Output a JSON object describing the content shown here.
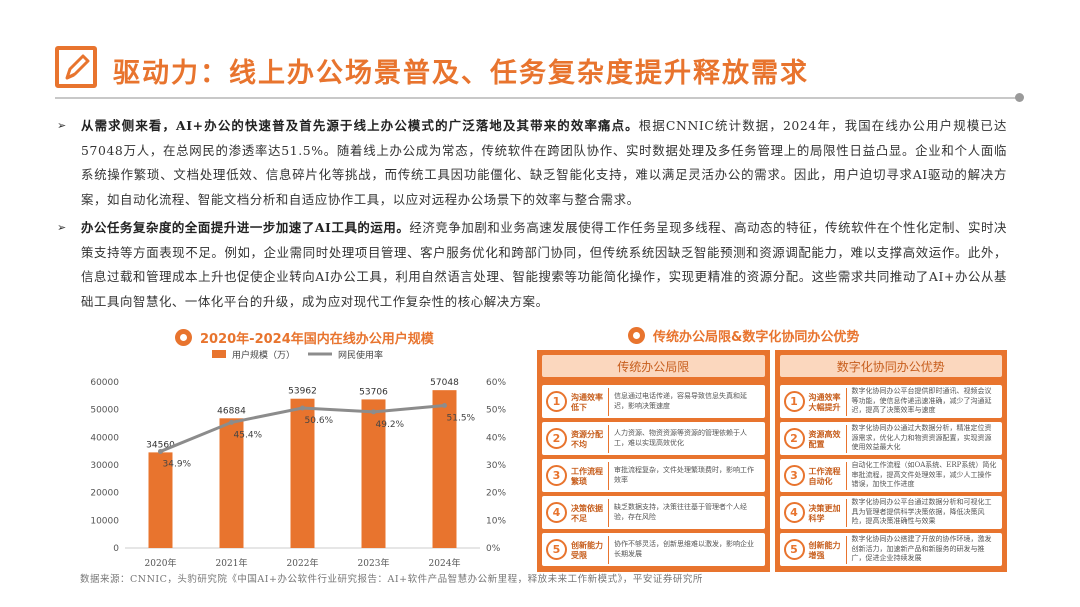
{
  "page": {
    "title": "驱动力：线上办公场景普及、任务复杂度提升释放需求"
  },
  "paragraphs": [
    {
      "bold": "从需求侧来看，AI+办公的快速普及首先源于线上办公模式的广泛落地及其带来的效率痛点。",
      "text": "根据CNNIC统计数据，2024年，我国在线办公用户规模已达57048万人，在总网民的渗透率达51.5%。随着线上办公成为常态，传统软件在跨团队协作、实时数据处理及多任务管理上的局限性日益凸显。企业和个人面临系统操作繁琐、文档处理低效、信息碎片化等挑战，而传统工具因功能僵化、缺乏智能化支持，难以满足灵活办公的需求。因此，用户迫切寻求AI驱动的解决方案，如自动化流程、智能文档分析和自适应协作工具，以应对远程办公场景下的效率与整合需求。"
    },
    {
      "bold": "办公任务复杂度的全面提升进一步加速了AI工具的运用。",
      "text": "经济竞争加剧和业务高速发展使得工作任务呈现多线程、高动态的特征，传统软件在个性化定制、实时决策支持等方面表现不足。例如，企业需同时处理项目管理、客户服务优化和跨部门协同，但传统系统因缺乏智能预测和资源调配能力，难以支撑高效运作。此外，信息过载和管理成本上升也促使企业转向AI办公工具，利用自然语言处理、智能搜索等功能简化操作，实现更精准的资源分配。这些需求共同推动了AI+办公从基础工具向智慧化、一体化平台的升级，成为应对现代工作复杂性的核心解决方案。"
    }
  ],
  "chart_section_title": "2020年-2024年国内在线办公用户规模",
  "table_section_title": "传统办公局限&数字化协同办公优势",
  "chart_data": {
    "type": "bar",
    "categories": [
      "2020年",
      "2021年",
      "2022年",
      "2023年",
      "2024年"
    ],
    "series": [
      {
        "name": "用户规模（万）",
        "type": "bar",
        "axis": "left",
        "values": [
          34560,
          46884,
          53962,
          53706,
          57048
        ],
        "labels": [
          "34560",
          "46884",
          "53962",
          "53706",
          "57048"
        ],
        "color": "#e8742e"
      },
      {
        "name": "网民使用率",
        "type": "line",
        "axis": "right",
        "values": [
          34.9,
          45.4,
          50.6,
          49.2,
          51.5
        ],
        "labels": [
          "34.9%",
          "45.4%",
          "50.6%",
          "49.2%",
          "51.5%"
        ],
        "color": "#8c8c8c"
      }
    ],
    "ylim_left": [
      0,
      60000
    ],
    "yticks_left": [
      "0",
      "10000",
      "20000",
      "30000",
      "40000",
      "50000",
      "60000"
    ],
    "ylim_right": [
      0,
      60
    ],
    "yticks_right": [
      "0%",
      "10%",
      "20%",
      "30%",
      "40%",
      "50%",
      "60%"
    ],
    "legend_position": "top"
  },
  "comparison": {
    "left_header": "传统办公局限",
    "right_header": "数字化协同办公优势",
    "rows": [
      {
        "num": "1",
        "left_label": "沟通效率低下",
        "left_text": "信息通过电话传递，容易导致信息失真和延迟，影响决策速度",
        "right_label": "沟通效率大幅提升",
        "right_text": "数字化协同办公平台提供即时通讯、视频会议等功能，使信息传递迅速准确，减少了沟通延迟，提高了决策效率与速度"
      },
      {
        "num": "2",
        "left_label": "资源分配不均",
        "left_text": "人力资源、物资资源等资源的管理依赖于人工，难以实现高效优化",
        "right_label": "资源高效配置",
        "right_text": "数字化协同办公通过大数据分析，精准定位资源需求，优化人力和物资资源配置，实现资源使用效益最大化"
      },
      {
        "num": "3",
        "left_label": "工作流程繁琐",
        "left_text": "审批流程复杂，文件处理繁琐费时，影响工作效率",
        "right_label": "工作流程自动化",
        "right_text": "自动化工作流程（如OA系统、ERP系统）简化审批流程，提高文件处理效率，减少人工操作错误，加快工作进度"
      },
      {
        "num": "4",
        "left_label": "决策依据不足",
        "left_text": "缺乏数据支持，决策往往基于管理者个人经验，存在风险",
        "right_label": "决策更加科学",
        "right_text": "数字化协同办公平台通过数据分析和可视化工具为管理者提供科学决策依据，降低决策风险，提高决策准确性与效果"
      },
      {
        "num": "5",
        "left_label": "创新能力受限",
        "left_text": "协作不够灵活，创新思维难以激发，影响企业长期发展",
        "right_label": "创新能力增强",
        "right_text": "数字化协同办公搭建了开放的协作环境，激发创新活力，加速新产品和新服务的研发与推广，促进企业持续发展"
      }
    ]
  },
  "source": "数据来源：CNNIC，头豹研究院《中国AI+办公软件行业研究报告：AI+软件产品智慧办公新里程，释放未来工作新模式》，平安证券研究所"
}
